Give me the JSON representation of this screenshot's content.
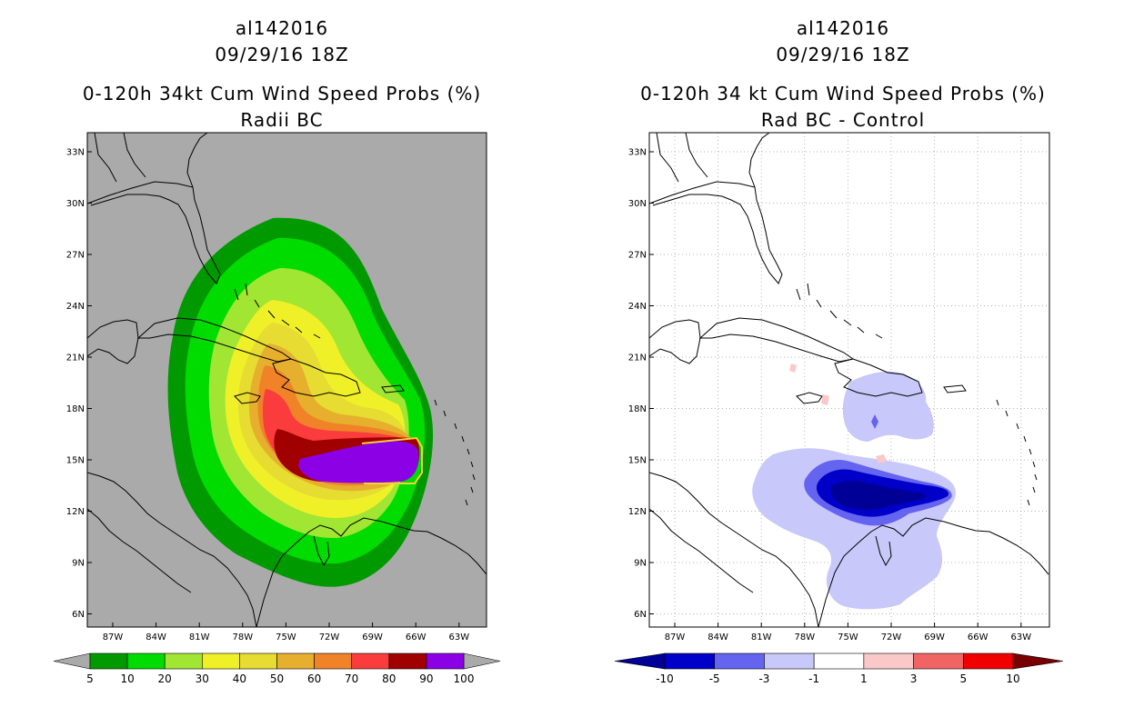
{
  "left_panel": {
    "title_lines": [
      "al142016",
      "09/29/16 18Z",
      "0-120h 34kt Cum Wind Speed Probs (%)",
      "Radii BC"
    ],
    "background_color": "#aaaaaa",
    "colorbar": {
      "labels": [
        "5",
        "10",
        "20",
        "30",
        "40",
        "50",
        "60",
        "70",
        "80",
        "90",
        "100"
      ],
      "colors": [
        "#009a00",
        "#00dc00",
        "#a0e632",
        "#f0f028",
        "#e6dc32",
        "#e6af2d",
        "#f08228",
        "#fa3c3c",
        "#a00000",
        "#8c00e6"
      ],
      "end_color": "#aaaaaa"
    }
  },
  "right_panel": {
    "title_lines": [
      "al142016",
      "09/29/16 18Z",
      "0-120h 34 kt Cum Wind Speed Probs (%)",
      "Rad BC - Control"
    ],
    "background_color": "#ffffff",
    "colorbar": {
      "labels": [
        "-10",
        "-5",
        "-3",
        "-1",
        "1",
        "3",
        "5",
        "10"
      ],
      "colors": [
        "#0000c8",
        "#6464f0",
        "#c8c8fa",
        "#ffffff",
        "#fac8c8",
        "#f06464",
        "#f00000"
      ],
      "low_end_color": "#000096",
      "high_end_color": "#780000"
    }
  },
  "map": {
    "lat_labels": [
      "33N",
      "30N",
      "27N",
      "24N",
      "21N",
      "18N",
      "15N",
      "12N",
      "9N",
      "6N"
    ],
    "lon_labels": [
      "87W",
      "84W",
      "81W",
      "78W",
      "75W",
      "72W",
      "69W",
      "66W",
      "63W"
    ]
  }
}
